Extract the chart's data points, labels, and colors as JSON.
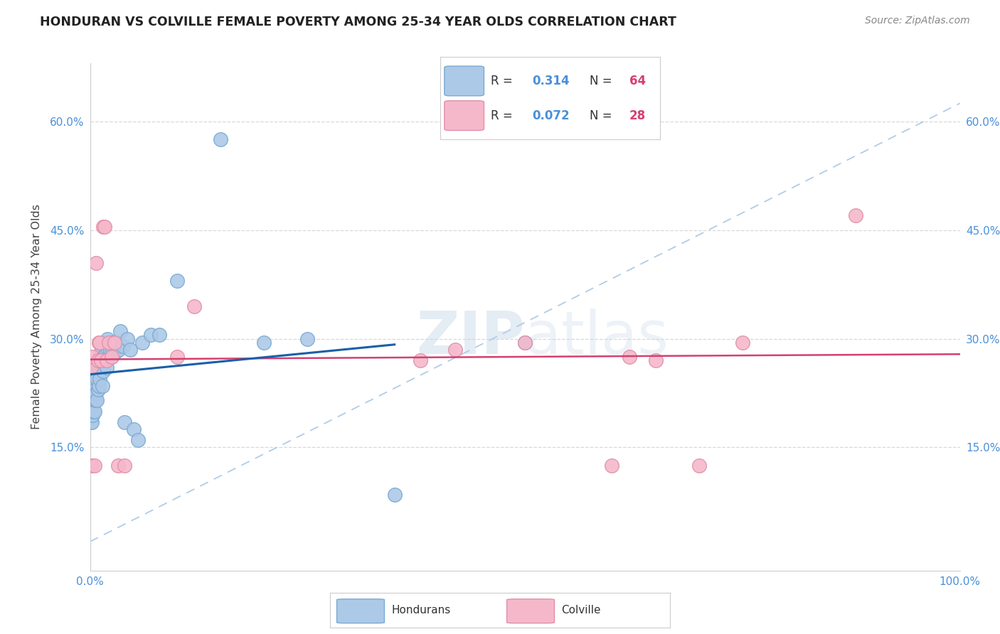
{
  "title": "HONDURAN VS COLVILLE FEMALE POVERTY AMONG 25-34 YEAR OLDS CORRELATION CHART",
  "source": "Source: ZipAtlas.com",
  "ylabel": "Female Poverty Among 25-34 Year Olds",
  "xlim": [
    0,
    1.0
  ],
  "ylim": [
    -0.02,
    0.68
  ],
  "ytick_labels": [
    "15.0%",
    "30.0%",
    "45.0%",
    "60.0%"
  ],
  "ytick_vals": [
    0.15,
    0.3,
    0.45,
    0.6
  ],
  "honduran_color": "#adc9e8",
  "colville_color": "#f5b8cb",
  "honduran_edge": "#7aaad0",
  "colville_edge": "#e090a8",
  "honduran_line_color": "#1a5fa8",
  "colville_line_color": "#d44070",
  "diag_line_color": "#b0cce8",
  "background_color": "#ffffff",
  "grid_color": "#d8d8d8",
  "title_color": "#222222",
  "axis_label_color": "#444444",
  "tick_color": "#4a90d9",
  "legend_R_color": "#4a90d9",
  "legend_N_color": "#d44070",
  "R_honduran": 0.314,
  "N_honduran": 64,
  "R_colville": 0.072,
  "N_colville": 28,
  "honduran_x": [
    0.001,
    0.001,
    0.001,
    0.002,
    0.002,
    0.002,
    0.002,
    0.003,
    0.003,
    0.003,
    0.004,
    0.004,
    0.005,
    0.005,
    0.005,
    0.006,
    0.006,
    0.007,
    0.007,
    0.008,
    0.008,
    0.009,
    0.009,
    0.01,
    0.01,
    0.011,
    0.011,
    0.012,
    0.013,
    0.014,
    0.015,
    0.015,
    0.016,
    0.017,
    0.018,
    0.019,
    0.02,
    0.021,
    0.022,
    0.023,
    0.024,
    0.025,
    0.026,
    0.027,
    0.028,
    0.03,
    0.031,
    0.033,
    0.035,
    0.038,
    0.04,
    0.043,
    0.046,
    0.05,
    0.055,
    0.06,
    0.07,
    0.08,
    0.1,
    0.15,
    0.2,
    0.25,
    0.35,
    0.5
  ],
  "honduran_y": [
    0.205,
    0.195,
    0.185,
    0.215,
    0.2,
    0.195,
    0.185,
    0.22,
    0.21,
    0.195,
    0.225,
    0.2,
    0.24,
    0.22,
    0.2,
    0.23,
    0.215,
    0.25,
    0.225,
    0.245,
    0.215,
    0.26,
    0.23,
    0.255,
    0.235,
    0.27,
    0.245,
    0.28,
    0.265,
    0.235,
    0.275,
    0.255,
    0.295,
    0.27,
    0.28,
    0.26,
    0.3,
    0.285,
    0.275,
    0.285,
    0.295,
    0.275,
    0.285,
    0.295,
    0.28,
    0.29,
    0.295,
    0.285,
    0.31,
    0.29,
    0.185,
    0.3,
    0.285,
    0.175,
    0.16,
    0.295,
    0.305,
    0.305,
    0.38,
    0.575,
    0.295,
    0.3,
    0.085,
    0.295
  ],
  "colville_x": [
    0.001,
    0.002,
    0.003,
    0.005,
    0.007,
    0.009,
    0.01,
    0.011,
    0.013,
    0.015,
    0.017,
    0.019,
    0.022,
    0.025,
    0.028,
    0.032,
    0.04,
    0.1,
    0.12,
    0.38,
    0.42,
    0.5,
    0.6,
    0.62,
    0.65,
    0.7,
    0.75,
    0.88
  ],
  "colville_y": [
    0.26,
    0.125,
    0.275,
    0.125,
    0.405,
    0.27,
    0.295,
    0.295,
    0.27,
    0.455,
    0.455,
    0.27,
    0.295,
    0.275,
    0.295,
    0.125,
    0.125,
    0.275,
    0.345,
    0.27,
    0.285,
    0.295,
    0.125,
    0.275,
    0.27,
    0.125,
    0.295,
    0.47
  ],
  "watermark_zip": "ZIP",
  "watermark_atlas": "atlas"
}
